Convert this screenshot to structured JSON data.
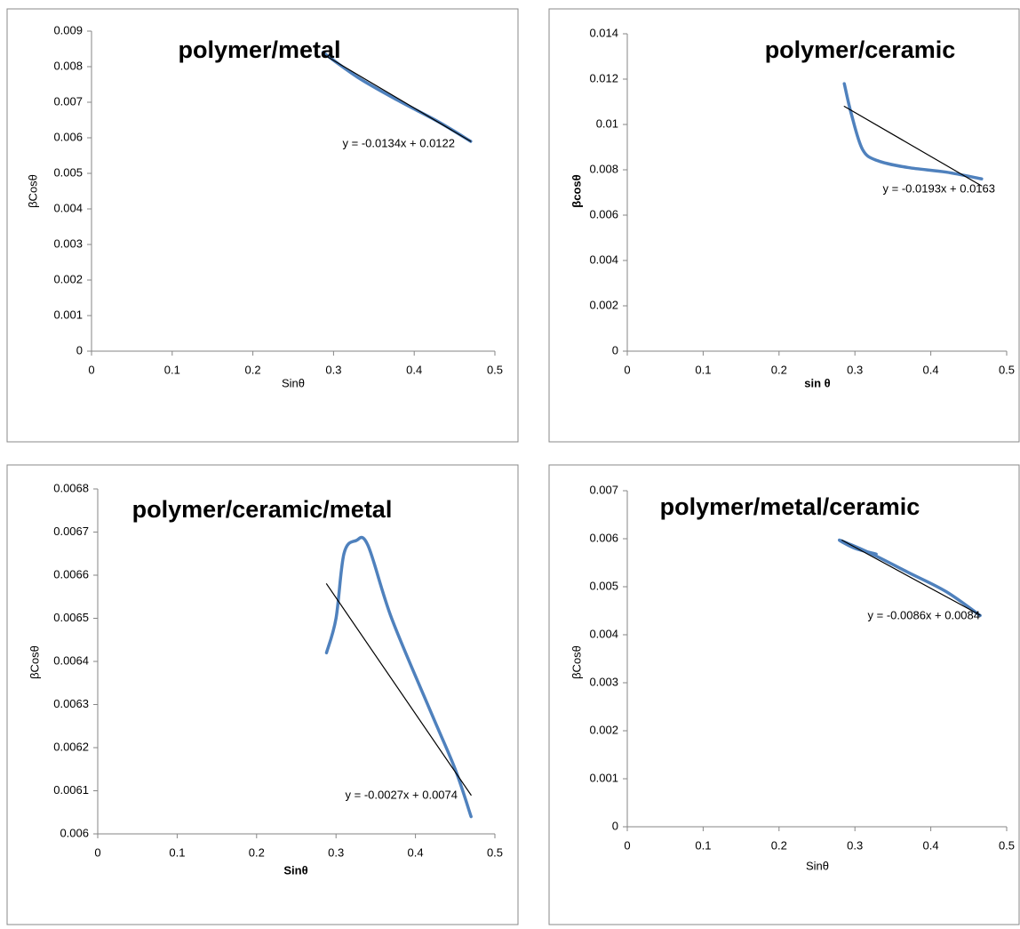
{
  "chart_data": [
    {
      "type": "line",
      "title": "polymer/metal",
      "xlabel": "Sinθ",
      "ylabel": "βCosθ",
      "annotation": "y = -0.0134x + 0.0122",
      "xlim": [
        0,
        0.5
      ],
      "xticks": [
        0,
        0.1,
        0.2,
        0.3,
        0.4,
        0.5
      ],
      "ylim": [
        0,
        0.009
      ],
      "yticks": [
        0,
        0.001,
        0.002,
        0.003,
        0.004,
        0.005,
        0.006,
        0.007,
        0.008,
        0.009
      ],
      "series": [
        {
          "color": "#4f81bd",
          "x": [
            0.287,
            0.33,
            0.38,
            0.43,
            0.47
          ],
          "values": [
            0.0084,
            0.0077,
            0.00705,
            0.00645,
            0.0059
          ]
        },
        {
          "color": "#000000",
          "x": [
            0.287,
            0.47
          ],
          "values": [
            0.00835,
            0.0059
          ]
        }
      ]
    },
    {
      "type": "line",
      "title": "polymer/ceramic",
      "xlabel": "sin θ",
      "ylabel": "βcosθ",
      "annotation": "y = -0.0193x + 0.0163",
      "xlim": [
        0,
        0.5
      ],
      "xticks": [
        0,
        0.1,
        0.2,
        0.3,
        0.4,
        0.5
      ],
      "ylim": [
        0,
        0.014
      ],
      "yticks": [
        0,
        0.002,
        0.004,
        0.006,
        0.008,
        0.01,
        0.012,
        0.014
      ],
      "series": [
        {
          "color": "#4f81bd",
          "x": [
            0.286,
            0.295,
            0.31,
            0.33,
            0.37,
            0.42,
            0.467
          ],
          "values": [
            0.0118,
            0.0105,
            0.0089,
            0.0084,
            0.0081,
            0.0079,
            0.0076
          ]
        },
        {
          "color": "#000000",
          "x": [
            0.286,
            0.467
          ],
          "values": [
            0.0108,
            0.00729
          ]
        }
      ]
    },
    {
      "type": "line",
      "title": "polymer/ceramic/metal",
      "xlabel": "Sinθ",
      "ylabel": "βCosθ",
      "annotation": "y = -0.0027x + 0.0074",
      "xlim": [
        0,
        0.5
      ],
      "xticks": [
        0,
        0.1,
        0.2,
        0.3,
        0.4,
        0.5
      ],
      "ylim": [
        0.006,
        0.0068
      ],
      "yticks": [
        0.006,
        0.0061,
        0.0062,
        0.0063,
        0.0064,
        0.0065,
        0.0066,
        0.0067,
        0.0068
      ],
      "series": [
        {
          "color": "#4f81bd",
          "x": [
            0.288,
            0.3,
            0.31,
            0.325,
            0.34,
            0.37,
            0.42,
            0.45,
            0.47
          ],
          "values": [
            0.00642,
            0.0065,
            0.00665,
            0.00668,
            0.00667,
            0.0065,
            0.00628,
            0.00615,
            0.00604
          ]
        },
        {
          "color": "#000000",
          "x": [
            0.288,
            0.47
          ],
          "values": [
            0.00658,
            0.00609
          ]
        }
      ]
    },
    {
      "type": "line",
      "title": "polymer/metal/ceramic",
      "xlabel": "Sinθ",
      "ylabel": "βCosθ",
      "annotation": "y = -0.0086x + 0.0084",
      "xlim": [
        0,
        0.5
      ],
      "xticks": [
        0,
        0.1,
        0.2,
        0.3,
        0.4,
        0.5
      ],
      "ylim": [
        0,
        0.007
      ],
      "yticks": [
        0,
        0.001,
        0.002,
        0.003,
        0.004,
        0.005,
        0.006,
        0.007
      ],
      "series": [
        {
          "color": "#4f81bd",
          "x": [
            0.328,
            0.3,
            0.28,
            0.32,
            0.37,
            0.42,
            0.465
          ],
          "values": [
            0.00568,
            0.0058,
            0.00597,
            0.0057,
            0.0053,
            0.0049,
            0.0044
          ]
        },
        {
          "color": "#000000",
          "x": [
            0.283,
            0.465
          ],
          "values": [
            0.00597,
            0.00441
          ]
        }
      ]
    }
  ]
}
